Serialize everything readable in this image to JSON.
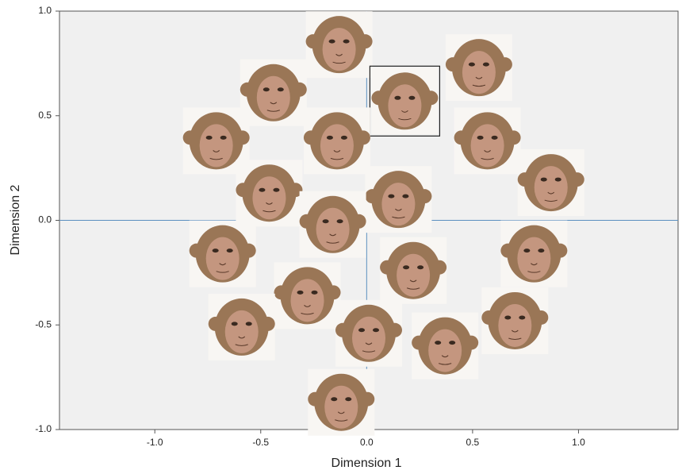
{
  "chart_data": {
    "type": "scatter",
    "xlabel": "Dimension 1",
    "ylabel": "Dimension 2",
    "x": [
      -0.13,
      -0.44,
      0.53,
      0.18,
      -0.71,
      -0.14,
      0.57,
      0.87,
      -0.46,
      0.15,
      -0.16,
      -0.68,
      0.22,
      0.79,
      -0.28,
      -0.59,
      0.01,
      0.37,
      0.7,
      -0.12
    ],
    "series": [
      {
        "color": "#9a7656",
        "values": [
          0.84,
          0.61,
          0.73,
          0.57,
          0.38,
          0.38,
          0.38,
          0.18,
          0.13,
          0.1,
          -0.02,
          -0.16,
          -0.24,
          -0.16,
          -0.36,
          -0.51,
          -0.54,
          -0.6,
          -0.48,
          -0.87
        ]
      }
    ],
    "highlight": 3,
    "xlim": [
      -1.45,
      1.47
    ],
    "ylim": [
      -1.0,
      1.0
    ],
    "xticks": [
      {
        "value": -1,
        "label": "-1.0"
      },
      {
        "value": -0.5,
        "label": "-0.5"
      },
      {
        "value": 0,
        "label": "0.0"
      },
      {
        "value": 0.5,
        "label": "0.5"
      },
      {
        "value": 1,
        "label": "1.0"
      }
    ],
    "yticks": [
      {
        "value": -1,
        "label": "-1.0"
      },
      {
        "value": -0.5,
        "label": "-0.5"
      },
      {
        "value": 0,
        "label": "0.0"
      },
      {
        "value": 0.5,
        "label": "0.5"
      },
      {
        "value": 1,
        "label": "1.0"
      }
    ],
    "reference_color": "#5b8fc0"
  }
}
